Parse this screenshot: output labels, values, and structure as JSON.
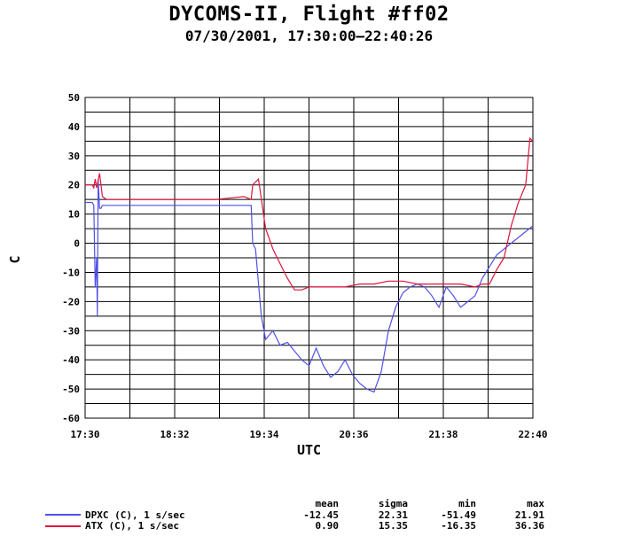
{
  "title": "DYCOMS-II, Flight #ff02",
  "subtitle": "07/30/2001, 17:30:00—22:40:26",
  "chart_data": {
    "type": "line",
    "xlabel": "UTC",
    "ylabel": "C",
    "x_tick_labels": [
      "17:30",
      "18:32",
      "19:34",
      "20:36",
      "21:38",
      "22:40"
    ],
    "xlim_minutes_label": [
      "17:30",
      "22:40"
    ],
    "ylim": [
      -60,
      50
    ],
    "y_ticks": [
      -60,
      -50,
      -40,
      -30,
      -20,
      -10,
      0,
      10,
      20,
      30,
      40,
      50
    ],
    "grid": true,
    "series": [
      {
        "name": "DPXC (C), 1 s/sec",
        "color": "#5050e6",
        "x_utc": [
          "17:30",
          "17:35",
          "17:36",
          "17:37",
          "17:38",
          "17:38.5",
          "17:39",
          "17:40",
          "17:41",
          "17:42",
          "17:45",
          "18:00",
          "18:30",
          "19:00",
          "19:20",
          "19:25",
          "19:26",
          "19:28",
          "19:32",
          "19:35",
          "19:40",
          "19:45",
          "19:50",
          "20:00",
          "20:05",
          "20:10",
          "20:15",
          "20:20",
          "20:25",
          "20:30",
          "20:35",
          "20:40",
          "20:45",
          "20:50",
          "20:55",
          "21:00",
          "21:05",
          "21:10",
          "21:15",
          "21:20",
          "21:25",
          "21:30",
          "21:35",
          "21:40",
          "21:45",
          "21:50",
          "21:55",
          "22:00",
          "22:05",
          "22:10",
          "22:15",
          "22:20",
          "22:25",
          "22:30",
          "22:35",
          "22:40"
        ],
        "values": [
          14,
          14,
          13,
          -15,
          -5,
          -25,
          22,
          12,
          12,
          13,
          13,
          13,
          13,
          13,
          13,
          13,
          0,
          -2,
          -25,
          -33,
          -30,
          -35,
          -34,
          -40,
          -42,
          -36,
          -42,
          -46,
          -44,
          -40,
          -45,
          -48,
          -50,
          -51,
          -44,
          -30,
          -22,
          -17,
          -15,
          -14,
          -15,
          -18,
          -22,
          -15,
          -18,
          -22,
          -20,
          -18,
          -12,
          -8,
          -4,
          -2,
          0,
          2,
          4,
          6
        ]
      },
      {
        "name": "ATX (C), 1 s/sec",
        "color": "#e0143c",
        "x_utc": [
          "17:30",
          "17:35",
          "17:36",
          "17:37",
          "17:38",
          "17:40",
          "17:42",
          "17:45",
          "18:00",
          "18:30",
          "19:00",
          "19:20",
          "19:25",
          "19:26",
          "19:30",
          "19:35",
          "19:40",
          "19:45",
          "19:50",
          "19:55",
          "20:00",
          "20:05",
          "20:10",
          "20:20",
          "20:30",
          "20:40",
          "20:50",
          "21:00",
          "21:10",
          "21:20",
          "21:30",
          "21:40",
          "21:50",
          "22:00",
          "22:05",
          "22:10",
          "22:15",
          "22:20",
          "22:25",
          "22:30",
          "22:35",
          "22:38",
          "22:40"
        ],
        "values": [
          20,
          20,
          19,
          22,
          19,
          24,
          16,
          15,
          15,
          15,
          15,
          16,
          15,
          20,
          22,
          5,
          -2,
          -7,
          -12,
          -16,
          -16,
          -15,
          -15,
          -15,
          -15,
          -14,
          -14,
          -13,
          -13,
          -14,
          -14,
          -14,
          -14,
          -15,
          -14,
          -14,
          -9,
          -5,
          6,
          14,
          20,
          36,
          35
        ]
      }
    ],
    "stats": {
      "headers": [
        "mean",
        "sigma",
        "min",
        "max"
      ],
      "rows": [
        {
          "label": "DPXC (C), 1 s/sec",
          "mean": "-12.45",
          "sigma": "22.31",
          "min": "-51.49",
          "max": "21.91"
        },
        {
          "label": "ATX (C), 1 s/sec",
          "mean": "0.90",
          "sigma": "15.35",
          "min": "-16.35",
          "max": "36.36"
        }
      ]
    }
  }
}
